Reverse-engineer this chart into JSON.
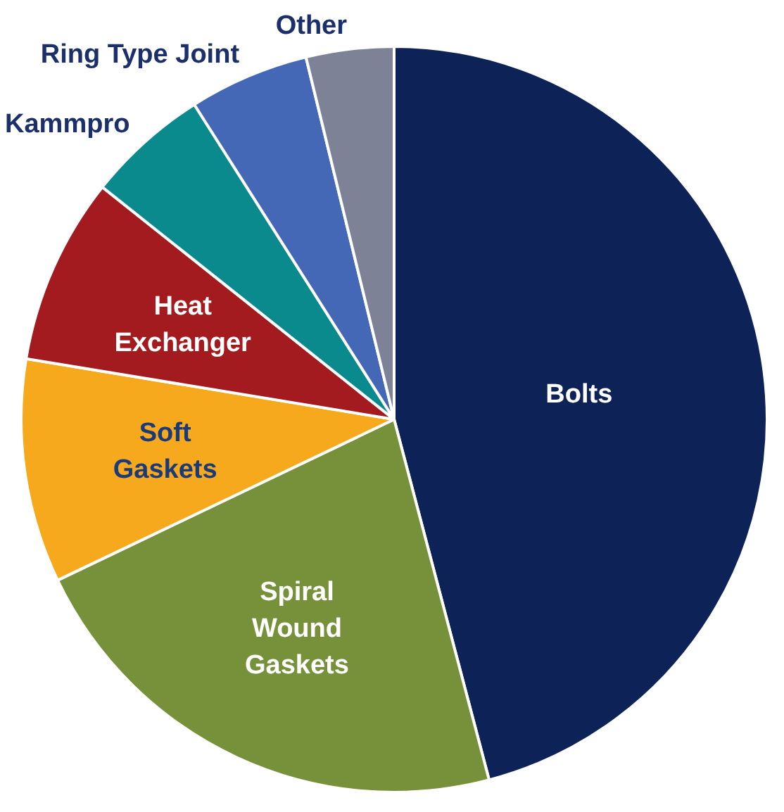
{
  "chart_data": {
    "type": "pie",
    "categories": [
      "Bolts",
      "Spiral Wound Gaskets",
      "Soft Gaskets",
      "Heat Exchanger",
      "Kammpro",
      "Ring Type Joint",
      "Other"
    ],
    "values": [
      45.9,
      22,
      9.7,
      8.1,
      5.3,
      5.2,
      3.8
    ],
    "colors": [
      "#0d2257",
      "#77913a",
      "#f6a91c",
      "#a31a1f",
      "#0b8a8e",
      "#4468b5",
      "#7d8296"
    ],
    "legend": false
  }
}
